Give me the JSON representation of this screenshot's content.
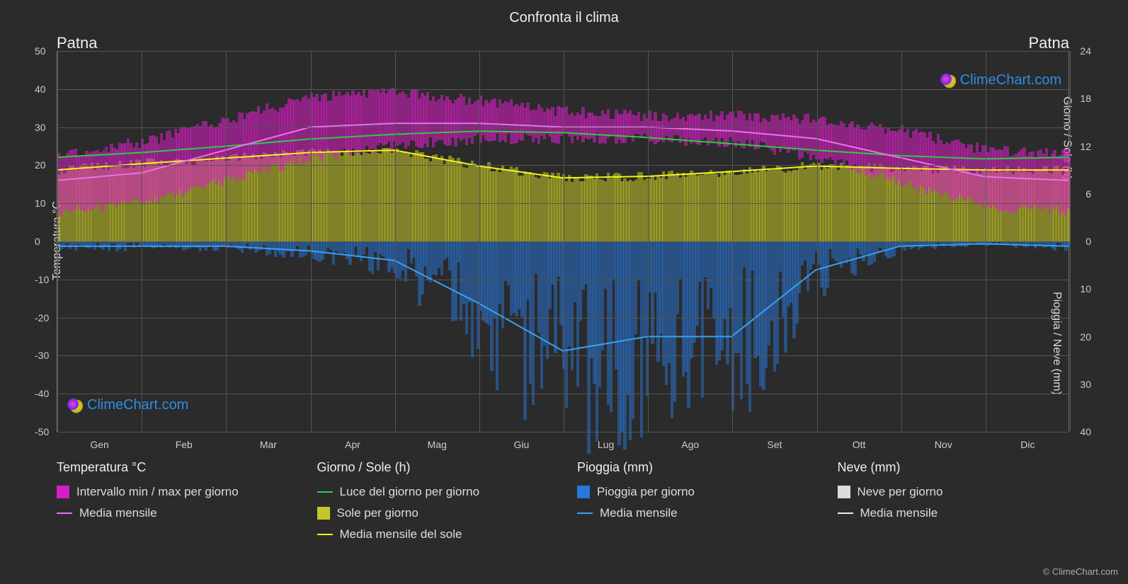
{
  "title": "Confronta il clima",
  "city": "Patna",
  "brand": "ClimeChart.com",
  "copyright": "© ClimeChart.com",
  "y_left": {
    "label": "Temperatura °C",
    "min": -50,
    "max": 50,
    "step": 10,
    "ticks": [
      -50,
      -40,
      -30,
      -20,
      -10,
      0,
      10,
      20,
      30,
      40,
      50
    ]
  },
  "y_right_top": {
    "label": "Giorno / Sole (h)",
    "min": 0,
    "max": 24,
    "step": 6,
    "ticks": [
      0,
      6,
      12,
      18,
      24
    ]
  },
  "y_right_bottom": {
    "label": "Pioggia / Neve (mm)",
    "min": 0,
    "max": 40,
    "step": 10,
    "ticks": [
      0,
      10,
      20,
      30,
      40
    ]
  },
  "months": [
    "Gen",
    "Feb",
    "Mar",
    "Apr",
    "Mag",
    "Giu",
    "Lug",
    "Ago",
    "Set",
    "Ott",
    "Nov",
    "Dic"
  ],
  "colors": {
    "bg": "#2b2b2b",
    "grid": "#555555",
    "temp_range": "#d41ec8",
    "temp_mean": "#ee6eee",
    "daylight": "#2ecc40",
    "sun_fill": "#c6c628",
    "sun_mean": "#f5f516",
    "rain_fill": "#2878dc",
    "rain_mean": "#3aa0f0",
    "snow_fill": "#dddddd",
    "snow_mean": "#eeeeee"
  },
  "series": {
    "temp_min": [
      8,
      10,
      16,
      22,
      25,
      27,
      27,
      27,
      26,
      22,
      15,
      9
    ],
    "temp_max": [
      23,
      26,
      32,
      38,
      39,
      37,
      34,
      33,
      33,
      32,
      29,
      24
    ],
    "temp_mean": [
      16,
      18,
      24,
      30,
      31,
      31,
      30,
      30,
      29,
      27,
      22,
      17
    ],
    "daylight_h": [
      10.6,
      11.2,
      12.0,
      12.9,
      13.5,
      13.9,
      13.7,
      13.1,
      12.3,
      11.5,
      10.8,
      10.4
    ],
    "sun_h": [
      9.0,
      9.8,
      10.5,
      11.2,
      11.5,
      9.5,
      8.0,
      8.2,
      8.8,
      9.5,
      9.2,
      9.0
    ],
    "rain_mm": [
      1,
      1,
      1,
      2,
      4,
      13,
      23,
      20,
      20,
      6,
      1,
      0.5
    ],
    "snow_mm": [
      0,
      0,
      0,
      0,
      0,
      0,
      0,
      0,
      0,
      0,
      0,
      0
    ]
  },
  "legend": {
    "temp": {
      "header": "Temperatura °C",
      "range": "Intervallo min / max per giorno",
      "mean": "Media mensile"
    },
    "daysun": {
      "header": "Giorno / Sole (h)",
      "daylight": "Luce del giorno per giorno",
      "sun": "Sole per giorno",
      "sunmean": "Media mensile del sole"
    },
    "rain": {
      "header": "Pioggia (mm)",
      "daily": "Pioggia per giorno",
      "mean": "Media mensile"
    },
    "snow": {
      "header": "Neve (mm)",
      "daily": "Neve per giorno",
      "mean": "Media mensile"
    }
  }
}
